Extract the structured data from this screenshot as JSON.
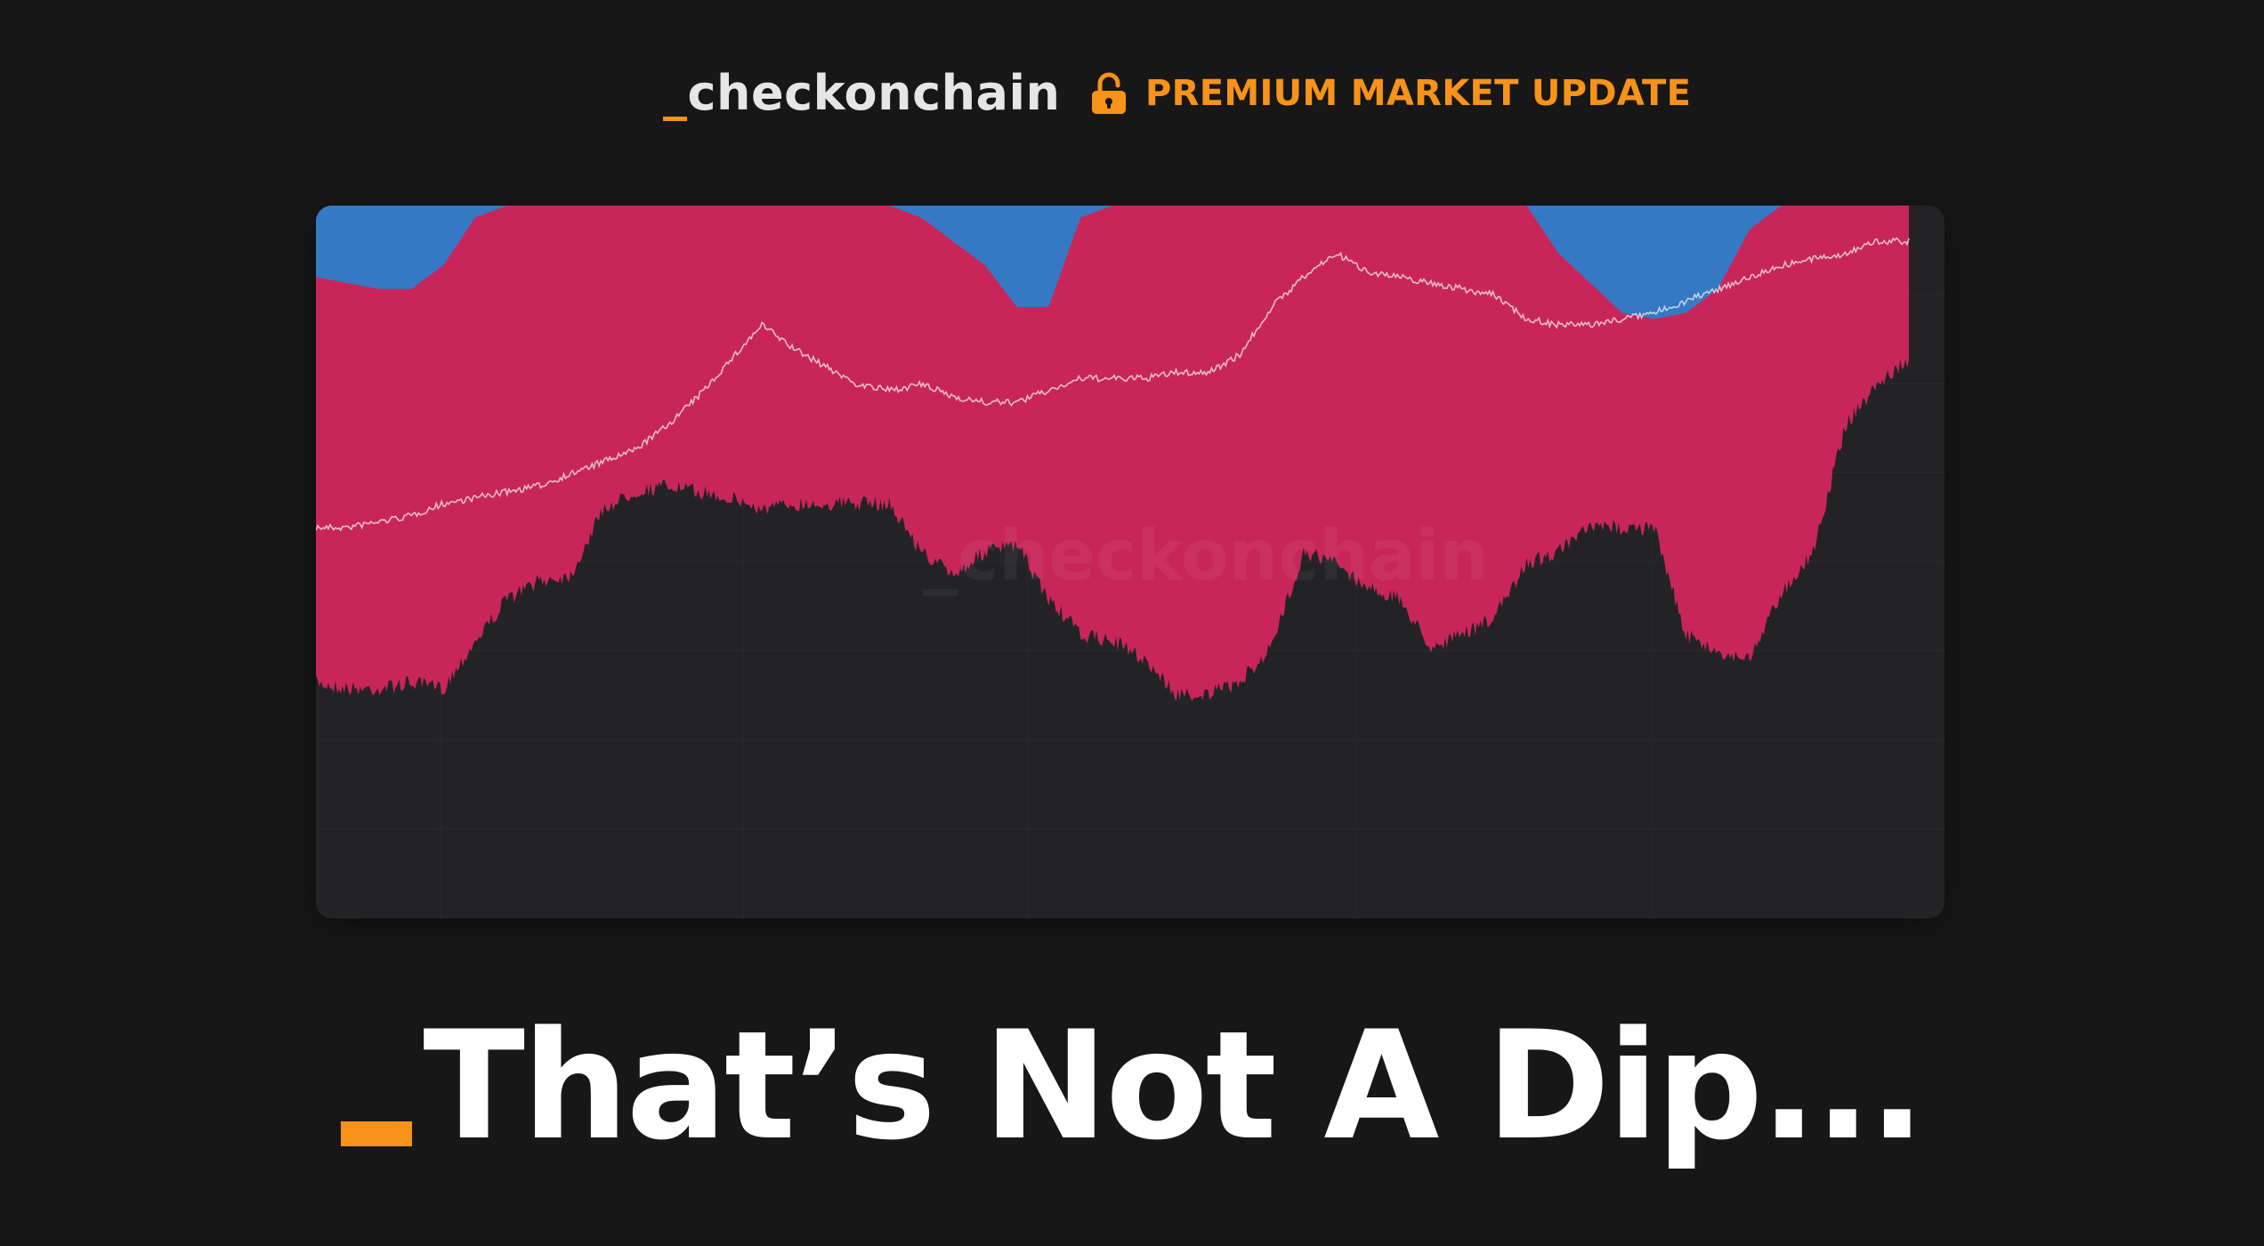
{
  "brand": {
    "prefix": "_",
    "name": "checkonchain"
  },
  "badge": {
    "icon": "unlocked-padlock-icon",
    "label": "PREMIUM MARKET UPDATE"
  },
  "chart": {
    "watermark": "_checkonchain"
  },
  "headline": {
    "text": "That’s Not A Dip..."
  },
  "colors": {
    "background": "#171718",
    "card": "#232326",
    "accent": "#f7931a",
    "band_blue": "#3579c4",
    "band_orange": "#c0852f",
    "band_pink": "#c8265a",
    "price_line": "#f0f0f0"
  },
  "chart_data": {
    "type": "area",
    "x": [
      0,
      2,
      4,
      6,
      8,
      10,
      12,
      14,
      16,
      18,
      20,
      22,
      24,
      26,
      28,
      30,
      32,
      34,
      36,
      38,
      40,
      42,
      44,
      46,
      48,
      50,
      52,
      54,
      56,
      58,
      60,
      62,
      64,
      66,
      68,
      70,
      72,
      74,
      76,
      78,
      80,
      82,
      84,
      86,
      88,
      90,
      92,
      94,
      96,
      98,
      100
    ],
    "series": [
      {
        "key": "pink_bottom",
        "values": [
          80,
          81,
          81,
          80,
          81,
          73,
          66,
          63,
          62,
          51,
          48,
          47,
          48,
          49,
          51,
          50,
          50,
          50,
          50,
          58,
          62,
          58,
          57,
          66,
          72,
          73,
          76,
          82,
          82,
          80,
          74,
          58,
          60,
          64,
          66,
          74,
          72,
          69,
          60,
          58,
          54,
          54,
          54,
          72,
          75,
          76,
          65,
          58,
          37,
          30,
          26
        ]
      },
      {
        "key": "orange_bottom",
        "values": [
          79,
          80,
          79,
          77,
          79,
          72,
          60,
          48,
          43,
          44,
          38,
          38,
          40,
          43,
          47,
          48,
          49,
          48,
          48,
          57,
          61,
          57,
          56,
          65,
          71,
          72,
          75,
          81,
          80,
          78,
          72,
          57,
          59,
          63,
          65,
          73,
          71,
          68,
          59,
          57,
          53,
          53,
          53,
          71,
          74,
          75,
          64,
          57,
          36,
          29,
          25
        ]
      },
      {
        "key": "blue_bottom",
        "values": [
          12,
          13,
          14,
          14,
          10,
          2,
          0,
          0,
          0,
          0,
          0,
          0,
          0,
          0,
          0,
          0,
          0,
          0,
          0,
          2,
          6,
          10,
          17,
          17,
          2,
          0,
          0,
          0,
          0,
          0,
          0,
          0,
          0,
          0,
          0,
          0,
          0,
          0,
          0,
          8,
          13,
          18,
          19,
          18,
          14,
          4,
          0,
          0,
          0,
          0,
          0
        ]
      },
      {
        "key": "price_line",
        "values": [
          54,
          54,
          53,
          52,
          50,
          49,
          48,
          47,
          45,
          43,
          41,
          37,
          32,
          26,
          20,
          24,
          27,
          30,
          31,
          30,
          32,
          33,
          33,
          31,
          29,
          29,
          29,
          28,
          28,
          25,
          17,
          12,
          8,
          11,
          12,
          13,
          14,
          15,
          19,
          20,
          20,
          19,
          18,
          16,
          14,
          12,
          10,
          9,
          8,
          6,
          6
        ]
      }
    ],
    "ylim": [
      0,
      100
    ],
    "grid": true
  }
}
